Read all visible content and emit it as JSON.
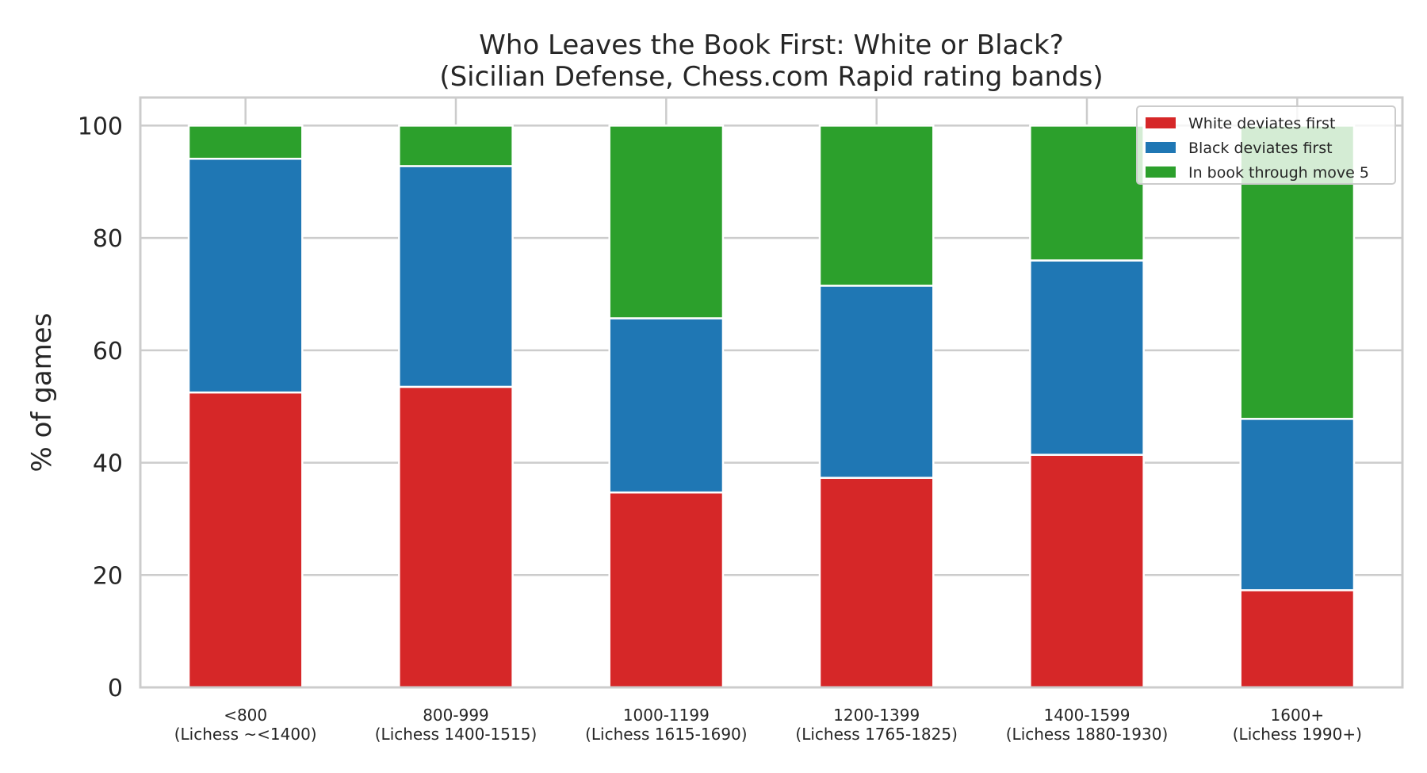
{
  "chart_data": {
    "type": "bar",
    "stacked": true,
    "title": "Who Leaves the Book First: White or Black?",
    "subtitle": "(Sicilian Defense, Chess.com Rapid rating bands)",
    "xlabel": "",
    "ylabel": "% of games",
    "ylim": [
      0,
      105
    ],
    "yticks": [
      0,
      20,
      40,
      60,
      80,
      100
    ],
    "grid": true,
    "legend_position": "top-right",
    "categories": [
      "<800\n(Lichess ~<1400)",
      "800-999\n(Lichess 1400-1515)",
      "1000-1199\n(Lichess 1615-1690)",
      "1200-1399\n(Lichess 1765-1825)",
      "1400-1599\n(Lichess 1880-1930)",
      "1600+\n(Lichess 1990+)"
    ],
    "series": [
      {
        "name": "White deviates first",
        "color": "#d62728",
        "values": [
          52.5,
          53.5,
          34.7,
          37.3,
          41.4,
          17.3
        ]
      },
      {
        "name": "Black deviates first",
        "color": "#1f77b4",
        "values": [
          41.6,
          39.3,
          31.0,
          34.2,
          34.6,
          30.5
        ]
      },
      {
        "name": "In book through move 5",
        "color": "#2ca02c",
        "values": [
          5.9,
          7.2,
          34.3,
          28.5,
          24.0,
          52.2
        ]
      }
    ]
  }
}
